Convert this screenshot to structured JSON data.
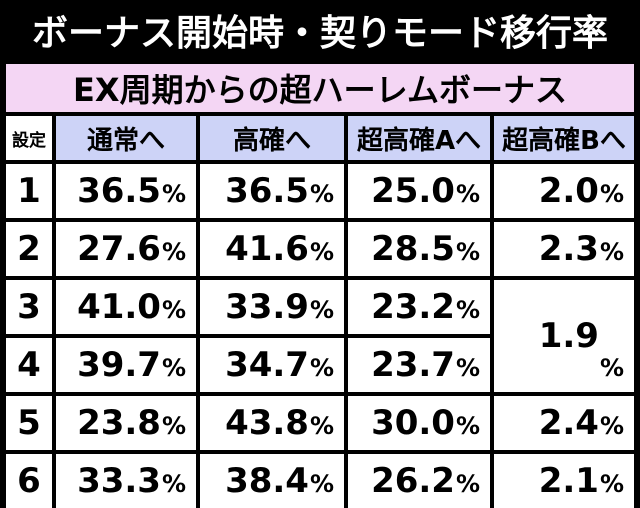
{
  "title": "ボーナス開始時・契りモード移行率",
  "subheader": "EX周期からの超ハーレムボーナス",
  "headers": {
    "setting": "設定",
    "normal": "通常へ",
    "high": "高確へ",
    "super_a": "超高確Aへ",
    "super_b": "超高確Bへ"
  },
  "percent_sign": "%",
  "rows": [
    {
      "setting": "1",
      "normal": "36.5",
      "high": "36.5",
      "super_a": "25.0",
      "super_b": "2.0"
    },
    {
      "setting": "2",
      "normal": "27.6",
      "high": "41.6",
      "super_a": "28.5",
      "super_b": "2.3"
    },
    {
      "setting": "3",
      "normal": "41.0",
      "high": "33.9",
      "super_a": "23.2"
    },
    {
      "setting": "4",
      "normal": "39.7",
      "high": "34.7",
      "super_a": "23.7"
    },
    {
      "setting": "5",
      "normal": "23.8",
      "high": "43.8",
      "super_a": "30.0",
      "super_b": "2.4"
    },
    {
      "setting": "6",
      "normal": "33.3",
      "high": "38.4",
      "super_a": "26.2",
      "super_b": "2.1"
    }
  ],
  "merged_super_b_3_4": "1.9",
  "colors": {
    "background": "#000000",
    "title_text": "#ffffff",
    "subheader_bg": "#f4d6f4",
    "column_header_bg": "#cdd3f7",
    "cell_bg": "#ffffff"
  }
}
